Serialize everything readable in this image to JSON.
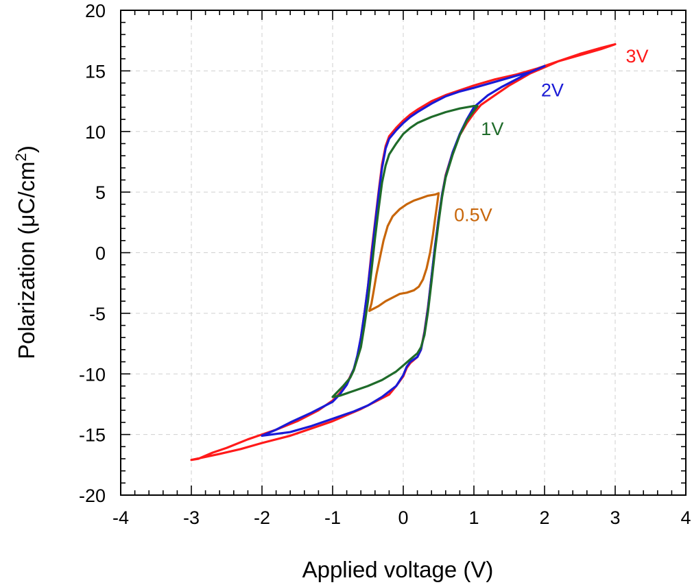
{
  "chart_data": {
    "type": "line",
    "title": "",
    "xlabel": "Applied voltage (V)",
    "ylabel_main": "Polarization (μC/cm",
    "ylabel_sup": "2",
    "ylabel_close": ")",
    "xlim": [
      -4,
      4
    ],
    "ylim": [
      -20,
      20
    ],
    "x_ticks": [
      -4,
      -3,
      -2,
      -1,
      0,
      1,
      2,
      3,
      4
    ],
    "y_ticks": [
      -20,
      -15,
      -10,
      -5,
      0,
      5,
      10,
      15,
      20
    ],
    "grid": true,
    "series": [
      {
        "name": "3V",
        "color": "#ff1a1a",
        "upper": [
          [
            -3,
            -17.1
          ],
          [
            -2.9,
            -17.0
          ],
          [
            -2.7,
            -16.5
          ],
          [
            -2.5,
            -16.1
          ],
          [
            -2.2,
            -15.4
          ],
          [
            -2.0,
            -15.0
          ],
          [
            -1.8,
            -14.6
          ],
          [
            -1.5,
            -13.9
          ],
          [
            -1.2,
            -13.0
          ],
          [
            -1.0,
            -12.2
          ],
          [
            -0.9,
            -11.6
          ],
          [
            -0.8,
            -10.8
          ],
          [
            -0.7,
            -9.6
          ],
          [
            -0.65,
            -8.6
          ],
          [
            -0.6,
            -7.0
          ],
          [
            -0.55,
            -5.0
          ],
          [
            -0.5,
            -2.8
          ],
          [
            -0.45,
            0.0
          ],
          [
            -0.4,
            2.5
          ],
          [
            -0.35,
            5.0
          ],
          [
            -0.3,
            7.3
          ],
          [
            -0.25,
            8.8
          ],
          [
            -0.2,
            9.6
          ],
          [
            -0.1,
            10.3
          ],
          [
            0,
            10.9
          ],
          [
            0.1,
            11.4
          ],
          [
            0.2,
            11.8
          ],
          [
            0.4,
            12.5
          ],
          [
            0.6,
            13.0
          ],
          [
            0.8,
            13.4
          ],
          [
            1.0,
            13.8
          ],
          [
            1.3,
            14.3
          ],
          [
            1.6,
            14.7
          ],
          [
            1.9,
            15.2
          ],
          [
            2.2,
            15.8
          ],
          [
            2.5,
            16.3
          ],
          [
            2.8,
            16.8
          ],
          [
            3.0,
            17.2
          ]
        ],
        "lower": [
          [
            3.0,
            17.2
          ],
          [
            2.8,
            16.9
          ],
          [
            2.5,
            16.4
          ],
          [
            2.2,
            15.8
          ],
          [
            2.0,
            15.3
          ],
          [
            1.8,
            14.8
          ],
          [
            1.5,
            13.8
          ],
          [
            1.3,
            13.0
          ],
          [
            1.1,
            12.2
          ],
          [
            1.0,
            11.5
          ],
          [
            0.9,
            10.7
          ],
          [
            0.8,
            9.7
          ],
          [
            0.7,
            8.3
          ],
          [
            0.6,
            6.4
          ],
          [
            0.55,
            4.8
          ],
          [
            0.5,
            2.8
          ],
          [
            0.45,
            0.5
          ],
          [
            0.4,
            -2.0
          ],
          [
            0.35,
            -4.5
          ],
          [
            0.3,
            -6.5
          ],
          [
            0.25,
            -8.0
          ],
          [
            0.2,
            -8.6
          ],
          [
            0.1,
            -9.1
          ],
          [
            0.05,
            -9.5
          ],
          [
            0,
            -10.2
          ],
          [
            -0.1,
            -11.0
          ],
          [
            -0.2,
            -11.7
          ],
          [
            -0.4,
            -12.3
          ],
          [
            -0.6,
            -12.9
          ],
          [
            -0.8,
            -13.4
          ],
          [
            -1.0,
            -13.9
          ],
          [
            -1.3,
            -14.5
          ],
          [
            -1.6,
            -15.1
          ],
          [
            -2.0,
            -15.7
          ],
          [
            -2.3,
            -16.2
          ],
          [
            -2.6,
            -16.6
          ],
          [
            -3,
            -17.1
          ]
        ]
      },
      {
        "name": "2V",
        "color": "#1a1ad6",
        "upper": [
          [
            -2,
            -15.1
          ],
          [
            -1.8,
            -14.6
          ],
          [
            -1.6,
            -14.0
          ],
          [
            -1.3,
            -13.2
          ],
          [
            -1.0,
            -12.3
          ],
          [
            -0.9,
            -11.7
          ],
          [
            -0.8,
            -10.9
          ],
          [
            -0.7,
            -9.6
          ],
          [
            -0.65,
            -8.5
          ],
          [
            -0.6,
            -7.0
          ],
          [
            -0.55,
            -5.0
          ],
          [
            -0.5,
            -2.8
          ],
          [
            -0.45,
            -0.3
          ],
          [
            -0.4,
            2.3
          ],
          [
            -0.35,
            4.8
          ],
          [
            -0.3,
            7.0
          ],
          [
            -0.25,
            8.6
          ],
          [
            -0.2,
            9.4
          ],
          [
            -0.1,
            10.1
          ],
          [
            0,
            10.7
          ],
          [
            0.1,
            11.2
          ],
          [
            0.2,
            11.6
          ],
          [
            0.4,
            12.3
          ],
          [
            0.6,
            12.9
          ],
          [
            0.8,
            13.3
          ],
          [
            1.0,
            13.6
          ],
          [
            1.3,
            14.1
          ],
          [
            1.6,
            14.6
          ],
          [
            1.8,
            14.9
          ],
          [
            2.0,
            15.4
          ]
        ],
        "lower": [
          [
            2.0,
            15.4
          ],
          [
            1.8,
            14.9
          ],
          [
            1.6,
            14.3
          ],
          [
            1.4,
            13.7
          ],
          [
            1.2,
            13.0
          ],
          [
            1.0,
            12.0
          ],
          [
            0.9,
            11.0
          ],
          [
            0.8,
            9.8
          ],
          [
            0.7,
            8.3
          ],
          [
            0.6,
            6.3
          ],
          [
            0.55,
            4.8
          ],
          [
            0.5,
            2.8
          ],
          [
            0.45,
            0.6
          ],
          [
            0.4,
            -2.0
          ],
          [
            0.35,
            -4.6
          ],
          [
            0.3,
            -6.6
          ],
          [
            0.25,
            -8.0
          ],
          [
            0.2,
            -8.6
          ],
          [
            0.1,
            -9.0
          ],
          [
            0.05,
            -9.4
          ],
          [
            0.02,
            -9.8
          ],
          [
            0,
            -10.1
          ],
          [
            -0.1,
            -11.0
          ],
          [
            -0.3,
            -11.9
          ],
          [
            -0.5,
            -12.6
          ],
          [
            -0.7,
            -13.1
          ],
          [
            -1.0,
            -13.7
          ],
          [
            -1.3,
            -14.3
          ],
          [
            -1.6,
            -14.8
          ],
          [
            -2,
            -15.1
          ]
        ]
      },
      {
        "name": "1V",
        "color": "#1f6b2a",
        "upper": [
          [
            -1.0,
            -11.9
          ],
          [
            -0.95,
            -11.6
          ],
          [
            -0.85,
            -11.0
          ],
          [
            -0.75,
            -10.3
          ],
          [
            -0.7,
            -9.7
          ],
          [
            -0.6,
            -7.8
          ],
          [
            -0.55,
            -6.0
          ],
          [
            -0.5,
            -4.0
          ],
          [
            -0.45,
            -1.5
          ],
          [
            -0.4,
            1.2
          ],
          [
            -0.35,
            3.6
          ],
          [
            -0.3,
            5.8
          ],
          [
            -0.25,
            7.2
          ],
          [
            -0.2,
            8.1
          ],
          [
            -0.1,
            9.0
          ],
          [
            0,
            9.8
          ],
          [
            0.1,
            10.3
          ],
          [
            0.2,
            10.7
          ],
          [
            0.4,
            11.2
          ],
          [
            0.6,
            11.6
          ],
          [
            0.8,
            11.9
          ],
          [
            1.0,
            12.1
          ],
          [
            1.05,
            12.1
          ]
        ],
        "lower": [
          [
            1.05,
            12.1
          ],
          [
            1.0,
            11.7
          ],
          [
            0.9,
            10.9
          ],
          [
            0.8,
            9.7
          ],
          [
            0.7,
            8.1
          ],
          [
            0.6,
            6.2
          ],
          [
            0.55,
            4.6
          ],
          [
            0.5,
            2.5
          ],
          [
            0.45,
            0.2
          ],
          [
            0.4,
            -2.4
          ],
          [
            0.35,
            -4.9
          ],
          [
            0.3,
            -6.8
          ],
          [
            0.25,
            -7.8
          ],
          [
            0.2,
            -8.3
          ],
          [
            0.1,
            -8.8
          ],
          [
            0,
            -9.3
          ],
          [
            -0.1,
            -9.8
          ],
          [
            -0.3,
            -10.5
          ],
          [
            -0.5,
            -11.0
          ],
          [
            -0.7,
            -11.4
          ],
          [
            -0.9,
            -11.8
          ],
          [
            -1.0,
            -11.9
          ]
        ]
      },
      {
        "name": "0.5V",
        "color": "#c8660a",
        "upper": [
          [
            -0.48,
            -4.8
          ],
          [
            -0.45,
            -4.2
          ],
          [
            -0.42,
            -3.2
          ],
          [
            -0.38,
            -1.8
          ],
          [
            -0.33,
            -0.4
          ],
          [
            -0.28,
            1.0
          ],
          [
            -0.22,
            2.2
          ],
          [
            -0.15,
            3.0
          ],
          [
            -0.05,
            3.6
          ],
          [
            0.05,
            4.0
          ],
          [
            0.15,
            4.3
          ],
          [
            0.25,
            4.5
          ],
          [
            0.35,
            4.7
          ],
          [
            0.45,
            4.8
          ],
          [
            0.5,
            4.9
          ]
        ],
        "lower": [
          [
            0.5,
            4.9
          ],
          [
            0.48,
            4.0
          ],
          [
            0.45,
            2.8
          ],
          [
            0.42,
            1.5
          ],
          [
            0.38,
            0.0
          ],
          [
            0.33,
            -1.3
          ],
          [
            0.28,
            -2.2
          ],
          [
            0.22,
            -2.8
          ],
          [
            0.15,
            -3.1
          ],
          [
            0.05,
            -3.3
          ],
          [
            -0.05,
            -3.4
          ],
          [
            -0.15,
            -3.7
          ],
          [
            -0.25,
            -4.0
          ],
          [
            -0.35,
            -4.4
          ],
          [
            -0.48,
            -4.8
          ]
        ]
      }
    ],
    "series_labels": [
      {
        "text": "3V",
        "color": "#ff1a1a",
        "x": 3.15,
        "y": 15.7
      },
      {
        "text": "2V",
        "color": "#1a1ad6",
        "x": 1.95,
        "y": 12.9
      },
      {
        "text": "1V",
        "color": "#1f6b2a",
        "x": 1.1,
        "y": 9.7
      },
      {
        "text": "0.5V",
        "color": "#c8660a",
        "x": 0.72,
        "y": 2.6
      }
    ]
  }
}
